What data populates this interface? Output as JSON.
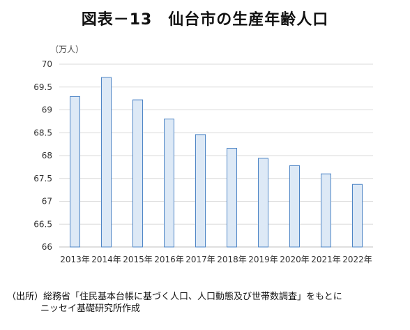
{
  "title": "図表－13　仙台市の生産年齢人口",
  "unit_label": "（万人）",
  "source_line1": "（出所）総務省「住民基本台帳に基づく人口、人口動態及び世帯数調査」をもとに",
  "source_line2": "ニッセイ基礎研究所作成",
  "colors": {
    "bar_fill": "#dde9f6",
    "bar_stroke": "#4f86c6",
    "grid": "#d9d9d9",
    "axis": "#bfbfbf"
  },
  "chart_data": {
    "type": "bar",
    "title": "図表－13　仙台市の生産年齢人口",
    "ylabel": "（万人）",
    "xlabel": "",
    "categories": [
      "2013年",
      "2014年",
      "2015年",
      "2016年",
      "2017年",
      "2018年",
      "2019年",
      "2020年",
      "2021年",
      "2022年"
    ],
    "values": [
      69.29,
      69.71,
      69.22,
      68.8,
      68.46,
      68.16,
      67.94,
      67.78,
      67.6,
      67.37
    ],
    "ylim": [
      66,
      70
    ],
    "yticks": [
      "66",
      "66.5",
      "67",
      "67.5",
      "68",
      "68.5",
      "69",
      "69.5",
      "70"
    ],
    "grid": true,
    "legend": "none"
  }
}
